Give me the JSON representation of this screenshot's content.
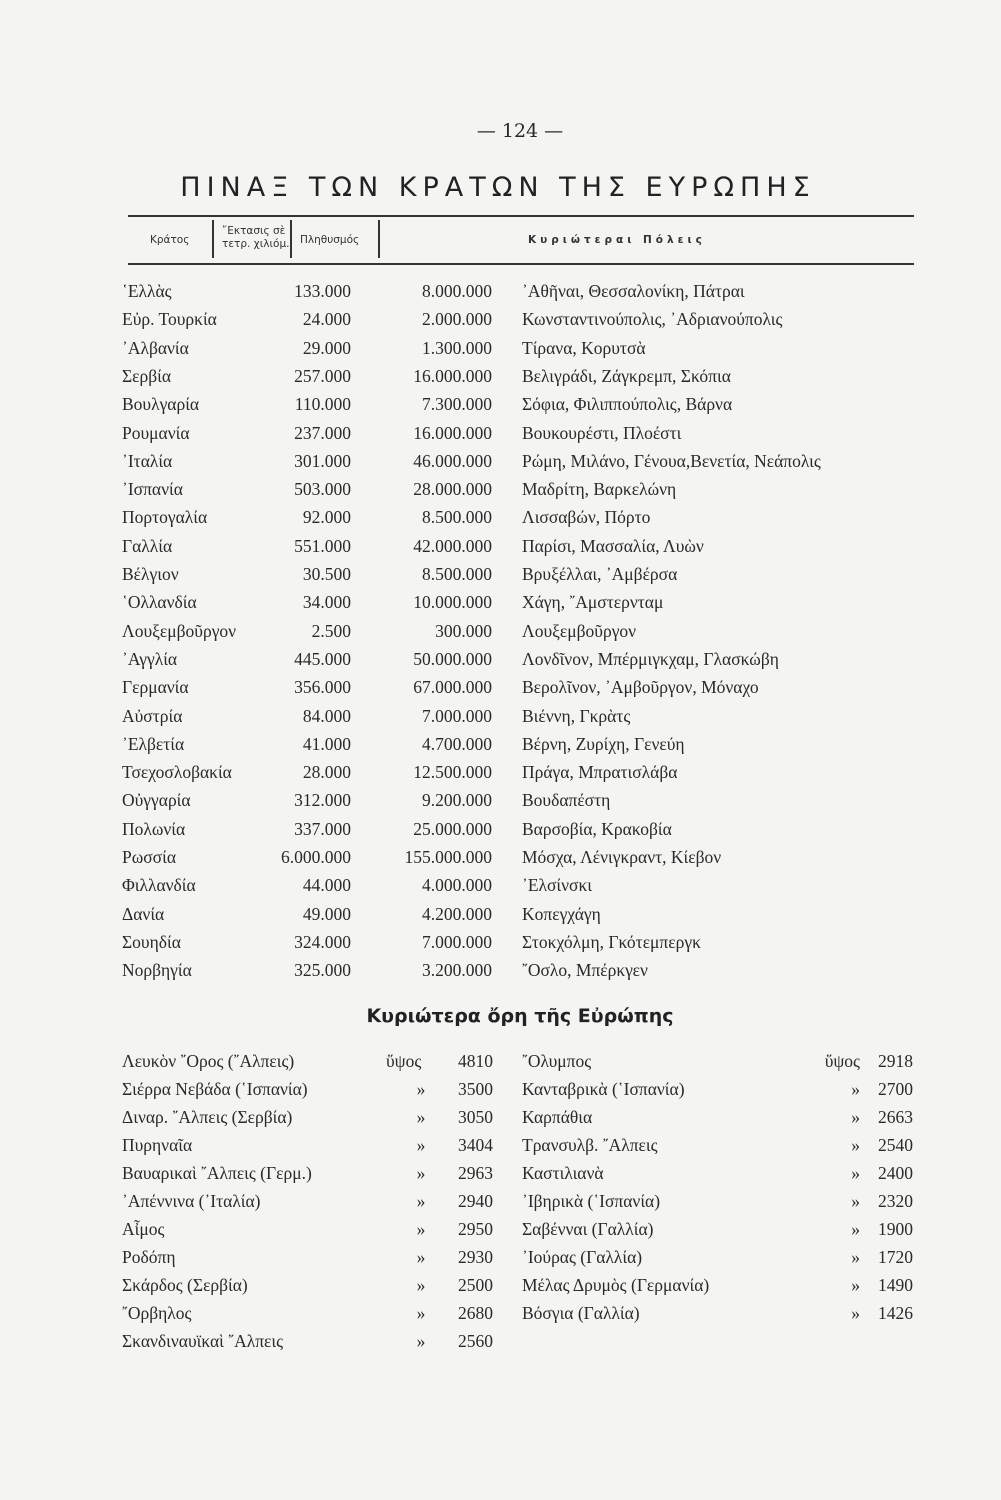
{
  "page_number": "— 124 —",
  "title": "ΠΙΝΑΞ ΤΩΝ ΚΡΑΤΩΝ ΤΗΣ ΕΥΡΩΠΗΣ",
  "table": {
    "headers": {
      "state": "Κράτος",
      "area_l1": "῎Εκτασις σὲ",
      "area_l2": "τετρ. χιλιόμ.",
      "population": "Πληθυσμός",
      "cities": "Κυριώτεραι Πόλεις"
    },
    "rows": [
      [
        "῾Ελλὰς",
        "133.000",
        "8.000.000",
        "᾿Αθῆναι, Θεσσαλονίκη, Πάτραι"
      ],
      [
        "Εὐρ. Τουρκία",
        "24.000",
        "2.000.000",
        "Κωνσταντινούπολις, ᾿Αδριανούπολις"
      ],
      [
        "᾿Αλβανία",
        "29.000",
        "1.300.000",
        "Τίρανα, Κορυτσὰ"
      ],
      [
        "Σερβία",
        "257.000",
        "16.000.000",
        "Βελιγράδι, Ζάγκρεμπ, Σκόπια"
      ],
      [
        "Βουλγαρία",
        "110.000",
        "7.300.000",
        "Σόφια, Φιλιππούπολις, Βάρνα"
      ],
      [
        "Ρουμανία",
        "237.000",
        "16.000.000",
        "Βουκουρέστι, Πλοέστι"
      ],
      [
        "᾿Ιταλία",
        "301.000",
        "46.000.000",
        "Ρώμη, Μιλάνο, Γένουα,Βενετία, Νεάπολις"
      ],
      [
        "᾿Ισπανία",
        "503.000",
        "28.000.000",
        "Μαδρίτη, Βαρκελώνη"
      ],
      [
        "Πορτογαλία",
        "92.000",
        "8.500.000",
        "Λισσαβών, Πόρτο"
      ],
      [
        "Γαλλία",
        "551.000",
        "42.000.000",
        "Παρίσι, Μασσαλία, Λυὼν"
      ],
      [
        "Βέλγιον",
        "30.500",
        "8.500.000",
        "Βρυξέλλαι, ᾿Αμβέρσα"
      ],
      [
        "῾Ολλανδία",
        "34.000",
        "10.000.000",
        "Χάγη, ῎Αμστερνταμ"
      ],
      [
        "Λουξεμβοῦργον",
        "2.500",
        "300.000",
        "Λουξεμβοῦργον"
      ],
      [
        "᾿Αγγλία",
        "445.000",
        "50.000.000",
        "Λονδῖνον, Μπέρμιγκχαμ, Γλασκώβη"
      ],
      [
        "Γερμανία",
        "356.000",
        "67.000.000",
        "Βερολῖνον, ᾿Αμβοῦργον, Μόναχο"
      ],
      [
        "Αὐστρία",
        "84.000",
        "7.000.000",
        "Βιέννη, Γκρὰτς"
      ],
      [
        "᾿Ελβετία",
        "41.000",
        "4.700.000",
        "Βέρνη, Ζυρίχη, Γενεύη"
      ],
      [
        "Τσεχοσλοβακία",
        "28.000",
        "12.500.000",
        "Πράγα, Μπρατισλάβα"
      ],
      [
        "Οὐγγαρία",
        "312.000",
        "9.200.000",
        "Βουδαπέστη"
      ],
      [
        "Πολωνία",
        "337.000",
        "25.000.000",
        "Βαρσοβία, Κρακοβία"
      ],
      [
        "Ρωσσία",
        "6.000.000",
        "155.000.000",
        "Μόσχα, Λένιγκραντ, Κίεβον"
      ],
      [
        "Φιλλανδία",
        "44.000",
        "4.000.000",
        "᾿Ελσίνσκι"
      ],
      [
        "Δανία",
        "49.000",
        "4.200.000",
        "Κοπεγχάγη"
      ],
      [
        "Σουηδία",
        "324.000",
        "7.000.000",
        "Στοκχόλμη, Γκότεμπεργκ"
      ],
      [
        "Νορβηγία",
        "325.000",
        "3.200.000",
        "῎Οσλο, Μπέρκγεν"
      ]
    ]
  },
  "mountains": {
    "title": "Κυριώτερα ὄρη τῆς Εὐρώπης",
    "left": [
      [
        "Λευκὸν ῎Ορος (῎Αλπεις)",
        "ὕψος",
        "4810"
      ],
      [
        "Σιέρρα Νεβάδα (῾Ισπανία)",
        "»",
        "3500"
      ],
      [
        "Διναρ. ῎Αλπεις (Σερβία)",
        "»",
        "3050"
      ],
      [
        "Πυρηναῖα",
        "»",
        "3404"
      ],
      [
        "Βαυαρικαὶ ῎Αλπεις (Γερμ.)",
        "»",
        "2963"
      ],
      [
        "᾿Απέννινα (᾿Ιταλία)",
        "»",
        "2940"
      ],
      [
        "Αἶμος",
        "»",
        "2950"
      ],
      [
        "Ροδόπη",
        "»",
        "2930"
      ],
      [
        "Σκάρδος (Σερβία)",
        "»",
        "2500"
      ],
      [
        "῎Ορβηλος",
        "»",
        "2680"
      ],
      [
        "Σκανδιναυϊκαὶ ῎Αλπεις",
        "»",
        "2560"
      ]
    ],
    "right": [
      [
        "῎Ολυμπος",
        "ὕψος",
        "2918"
      ],
      [
        "Κανταβρικὰ (῾Ισπανία)",
        "»",
        "2700"
      ],
      [
        "Καρπάθια",
        "»",
        "2663"
      ],
      [
        "Τρανσυλβ. ῎Αλπεις",
        "»",
        "2540"
      ],
      [
        "Καστιλιανὰ",
        "»",
        "2400"
      ],
      [
        "᾿Ιβηρικὰ (῾Ισπανία)",
        "»",
        "2320"
      ],
      [
        "Σαβένναι (Γαλλία)",
        "»",
        "1900"
      ],
      [
        "᾿Ιούρας (Γαλλία)",
        "»",
        "1720"
      ],
      [
        "Μέλας Δρυμὸς (Γερμανία)",
        "»",
        "1490"
      ],
      [
        "Βόσγια (Γαλλία)",
        "»",
        "1426"
      ]
    ]
  }
}
